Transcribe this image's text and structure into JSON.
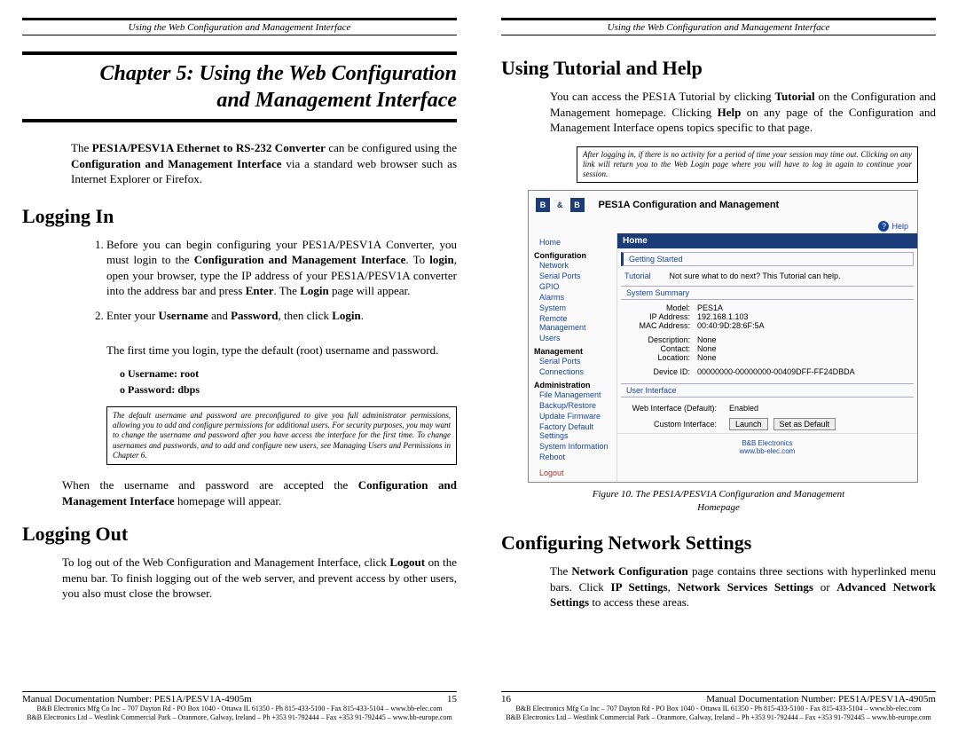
{
  "header": "Using the Web Configuration and Management Interface",
  "left": {
    "chapter_title": "Chapter 5: Using the Web Configuration\nand Management Interface",
    "intro_html": "The <b>PES1A/PESV1A Ethernet to RS-232 Converter</b> can be configured using the <b>Configuration and Management Interface</b> via a standard web browser such as Internet Explorer or Firefox.",
    "logging_in": "Logging In",
    "li1_html": "Before you can begin configuring your PES1A/PESV1A Converter, you must login to the <b>Configuration and Management Interface</b>. To <b>login</b>, open your browser, type the IP address of your PES1A/PESV1A converter into the address bar and press <b>Enter</b>. The <b>Login</b> page will appear.",
    "li2_html": "Enter your <b>Username</b> and <b>Password</b>, then click <b>Login</b>.",
    "first_time": "The first time you login, type the default (root) username and password.",
    "cred1": "o   Username: root",
    "cred2": "o   Password: dbps",
    "note": "The default username and password are preconfigured to give you full administrator permissions, allowing you to add and configure permissions for additional users. For security purposes, you may want to change the username and password after you have access the interface for the first time. To change usernames and passwords, and to add and configure new users, see Managing Users and Permissions in Chapter 6.",
    "accept_html": "When the username and password are accepted the <b>Configuration and Management Interface</b> homepage will appear.",
    "logging_out": "Logging Out",
    "logout_html": "To log out of the Web Configuration and Management Interface, click <b>Logout</b> on the menu bar. To finish logging out of the web server, and prevent access by other users, you also must close the browser.",
    "footer_doc": "Manual Documentation Number:  PES1A/PESV1A-4905m",
    "page_num": "15",
    "addr1": "B&B Electronics Mfg Co Inc – 707 Dayton Rd - PO Box 1040 - Ottawa IL 61350 - Ph 815-433-5100 - Fax 815-433-5104 – www.bb-elec.com",
    "addr2": "B&B Electronics Ltd – Westlink Commercial Park – Oranmore, Galway, Ireland – Ph +353 91-792444 – Fax +353 91-792445 – www.bb-europe.com"
  },
  "right": {
    "tutorial_heading": "Using Tutorial and Help",
    "tutorial_html": "You can access the PES1A Tutorial by clicking <b>Tutorial</b> on the Configuration and Management homepage. Clicking <b>Help</b> on any page of the Configuration and Management Interface opens topics specific to that page.",
    "session_note": "After logging in, if there is no activity for a period of time your session may time out. Clicking on any link will return you to the Web Login page where you will have to log in again to continue your session.",
    "scr": {
      "title": "PES1A Configuration and Management",
      "help": "Help",
      "sidebar": {
        "home": "Home",
        "config_hdr": "Configuration",
        "config_items": [
          "Network",
          "Serial Ports",
          "GPIO",
          "Alarms",
          "System",
          "Remote Management",
          "Users"
        ],
        "mgmt_hdr": "Management",
        "mgmt_items": [
          "Serial Ports",
          "Connections"
        ],
        "admin_hdr": "Administration",
        "admin_items": [
          "File Management",
          "Backup/Restore",
          "Update Firmware",
          "Factory Default Settings",
          "System Information",
          "Reboot"
        ],
        "logout": "Logout"
      },
      "main": {
        "home_bar": "Home",
        "getting_started": "Getting Started",
        "tutorial_label": "Tutorial",
        "tutorial_text": "Not sure what to do next? This Tutorial can help.",
        "summary_hdr": "System Summary",
        "summary": [
          [
            "Model:",
            "PES1A"
          ],
          [
            "IP Address:",
            "192.168.1.103"
          ],
          [
            "MAC Address:",
            "00:40:9D:28:6F:5A"
          ],
          [
            "",
            ""
          ],
          [
            "Description:",
            "None"
          ],
          [
            "Contact:",
            "None"
          ],
          [
            "Location:",
            "None"
          ],
          [
            "",
            ""
          ],
          [
            "Device ID:",
            "00000000-00000000-00409DFF-FF24DBDA"
          ]
        ],
        "ui_hdr": "User Interface",
        "web_default_k": "Web Interface (Default):",
        "web_default_v": "Enabled",
        "custom_k": "Custom Interface:",
        "btn_launch": "Launch",
        "btn_setdefault": "Set as Default",
        "foot1": "B&B Electronics",
        "foot2": "www.bb-elec.com"
      }
    },
    "figure_caption": "Figure 10.   The PES1A/PESV1A Configuration and Management Homepage",
    "config_heading": "Configuring Network Settings",
    "config_html": "The <b>Network Configuration</b> page contains three sections with hyperlinked menu bars. Click <b>IP Settings</b>, <b>Network Services Settings</b> or <b>Advanced Network Settings</b> to access these areas.",
    "page_num": "16",
    "footer_doc": "Manual Documentation Number: PES1A/PESV1A-4905m",
    "addr1": "B&B Electronics Mfg Co Inc – 707 Dayton Rd - PO Box 1040 - Ottawa IL 61350 - Ph 815-433-5100 - Fax 815-433-5104 – www.bb-elec.com",
    "addr2": "B&B Electronics Ltd – Westlink Commercial Park – Oranmore, Galway, Ireland – Ph +353 91-792444 – Fax +353 91-792445 – www.bb-europe.com"
  }
}
